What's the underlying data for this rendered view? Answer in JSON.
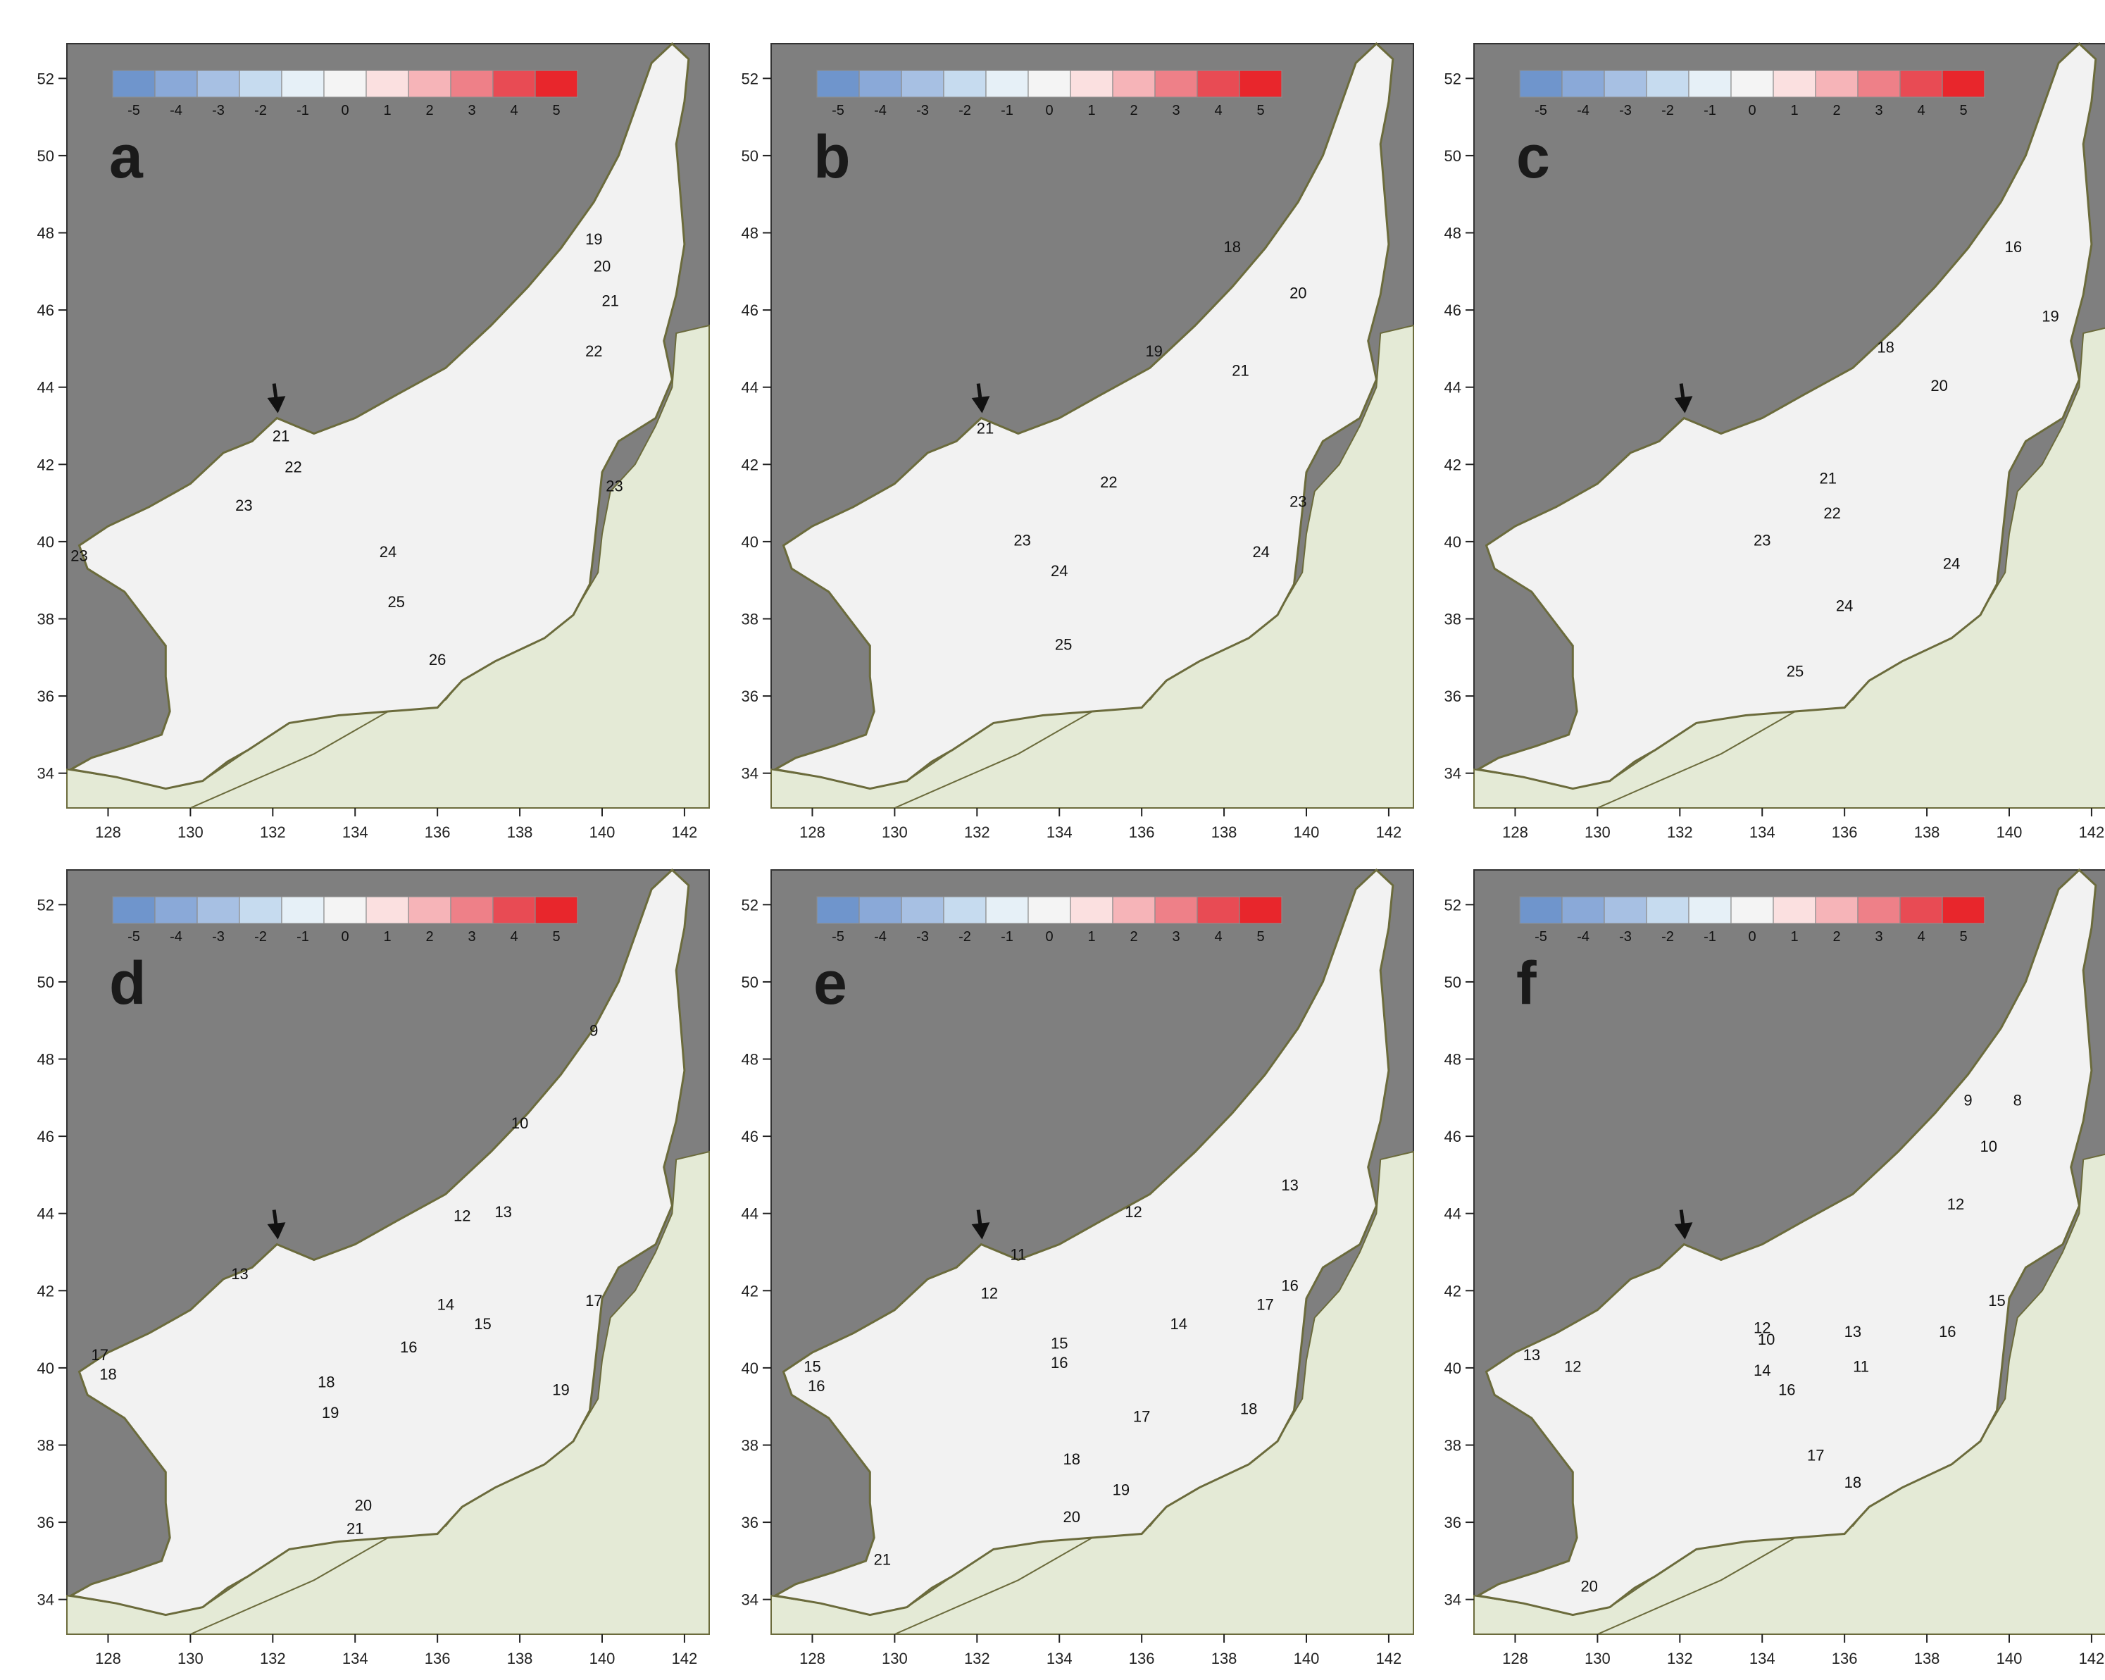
{
  "figure": {
    "x_axis": {
      "ticks": [
        "128",
        "130",
        "132",
        "134",
        "136",
        "138",
        "140",
        "142"
      ],
      "min": 127,
      "max": 142.6
    },
    "y_axis": {
      "ticks": [
        "34",
        "36",
        "38",
        "40",
        "42",
        "44",
        "46",
        "48",
        "50",
        "52"
      ],
      "min": 33.1,
      "max": 52.9
    },
    "colorbar": {
      "labels": [
        "-5",
        "-4",
        "-3",
        "-2",
        "-1",
        "0",
        "1",
        "2",
        "3",
        "4",
        "5"
      ],
      "colors": [
        "#6f95cc",
        "#8aa9d8",
        "#a7c0e3",
        "#c6dbef",
        "#e6f0f7",
        "#f4f4f4",
        "#fbe0e0",
        "#f6b4b8",
        "#ee8088",
        "#e84b54",
        "#e8262c"
      ]
    },
    "colors": {
      "ocean_land": "#7f7f7f",
      "japan_land": "#e4ead6",
      "sea_base": "#f2f2f2",
      "coast": "#6b6b3c",
      "anomaly_pos_1": "#fbe0e0",
      "anomaly_pos_2": "#f6b4b8",
      "anomaly_pos_3": "#ee8088",
      "anomaly_pos_4": "#e84b54",
      "anomaly_neg_1": "#e6f0f7"
    },
    "marker": "arrow-icon",
    "panels": [
      {
        "letter": "a",
        "contour_labels": [
          "19",
          "20",
          "21",
          "22",
          "21",
          "22",
          "23",
          "23",
          "23",
          "24",
          "25",
          "26"
        ]
      },
      {
        "letter": "b",
        "contour_labels": [
          "18",
          "20",
          "19",
          "21",
          "21",
          "22",
          "23",
          "23",
          "24",
          "24",
          "25"
        ]
      },
      {
        "letter": "c",
        "contour_labels": [
          "16",
          "19",
          "18",
          "20",
          "21",
          "22",
          "23",
          "24",
          "24",
          "25"
        ]
      },
      {
        "letter": "d",
        "contour_labels": [
          "9",
          "10",
          "12",
          "13",
          "13",
          "14",
          "15",
          "16",
          "17",
          "18",
          "17",
          "18",
          "19",
          "19",
          "20",
          "21"
        ]
      },
      {
        "letter": "e",
        "contour_labels": [
          "11",
          "12",
          "13",
          "12",
          "14",
          "15",
          "16",
          "17",
          "17",
          "16",
          "15",
          "16",
          "18",
          "18",
          "19",
          "20",
          "21"
        ]
      },
      {
        "letter": "f",
        "contour_labels": [
          "9",
          "8",
          "10",
          "12",
          "13",
          "12",
          "11",
          "10",
          "15",
          "16",
          "14",
          "16",
          "13",
          "12",
          "17",
          "18",
          "20"
        ]
      }
    ]
  }
}
